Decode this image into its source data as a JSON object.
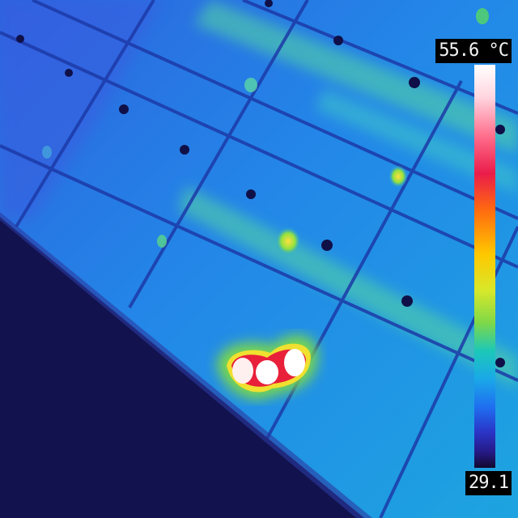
{
  "scale": {
    "max_label": "55.6 °C",
    "min_label": "29.1",
    "max_value": 55.6,
    "min_value": 29.1,
    "unit": "°C"
  },
  "palette": {
    "background_dark": "#12124e",
    "panel_blue": "#2a78e4",
    "panel_mid": "#1c9ce8",
    "frame_line": "#1e3fae",
    "hot_white": "#ffffff",
    "hot_red": "#e8203a",
    "warm_yellow": "#e8e020",
    "warm_green": "#48d840"
  }
}
